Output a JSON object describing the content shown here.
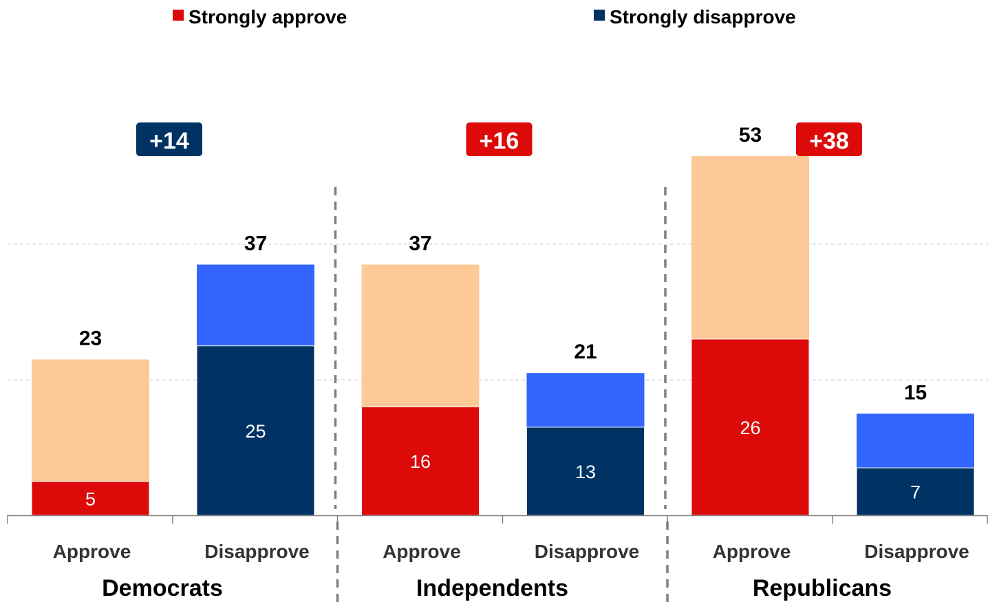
{
  "chart_data": {
    "type": "bar",
    "stacked": true,
    "legend": {
      "position": "top",
      "entries": [
        {
          "label": "Strongly approve",
          "color": "#dd0a0a"
        },
        {
          "label": "Strongly disapprove",
          "color": "#003264"
        }
      ]
    },
    "ylim": [
      0,
      60
    ],
    "grid": true,
    "gridlines": [
      20,
      40
    ],
    "colors": {
      "approve_strong": "#dd0a0a",
      "approve_total": "#fdca97",
      "disapprove_strong": "#003264",
      "disapprove_total": "#3366ff"
    },
    "groups": [
      {
        "name": "Democrats",
        "net": {
          "label": "+14",
          "color": "#003264"
        },
        "bars": [
          {
            "category": "Approve",
            "kind": "approve",
            "total": 23,
            "strong": 5
          },
          {
            "category": "Disapprove",
            "kind": "disapprove",
            "total": 37,
            "strong": 25
          }
        ]
      },
      {
        "name": "Independents",
        "net": {
          "label": "+16",
          "color": "#dd0a0a"
        },
        "bars": [
          {
            "category": "Approve",
            "kind": "approve",
            "total": 37,
            "strong": 16
          },
          {
            "category": "Disapprove",
            "kind": "disapprove",
            "total": 21,
            "strong": 13
          }
        ]
      },
      {
        "name": "Republicans",
        "net": {
          "label": "+38",
          "color": "#dd0a0a"
        },
        "bars": [
          {
            "category": "Approve",
            "kind": "approve",
            "total": 53,
            "strong": 26
          },
          {
            "category": "Disapprove",
            "kind": "disapprove",
            "total": 15,
            "strong": 7
          }
        ]
      }
    ]
  }
}
